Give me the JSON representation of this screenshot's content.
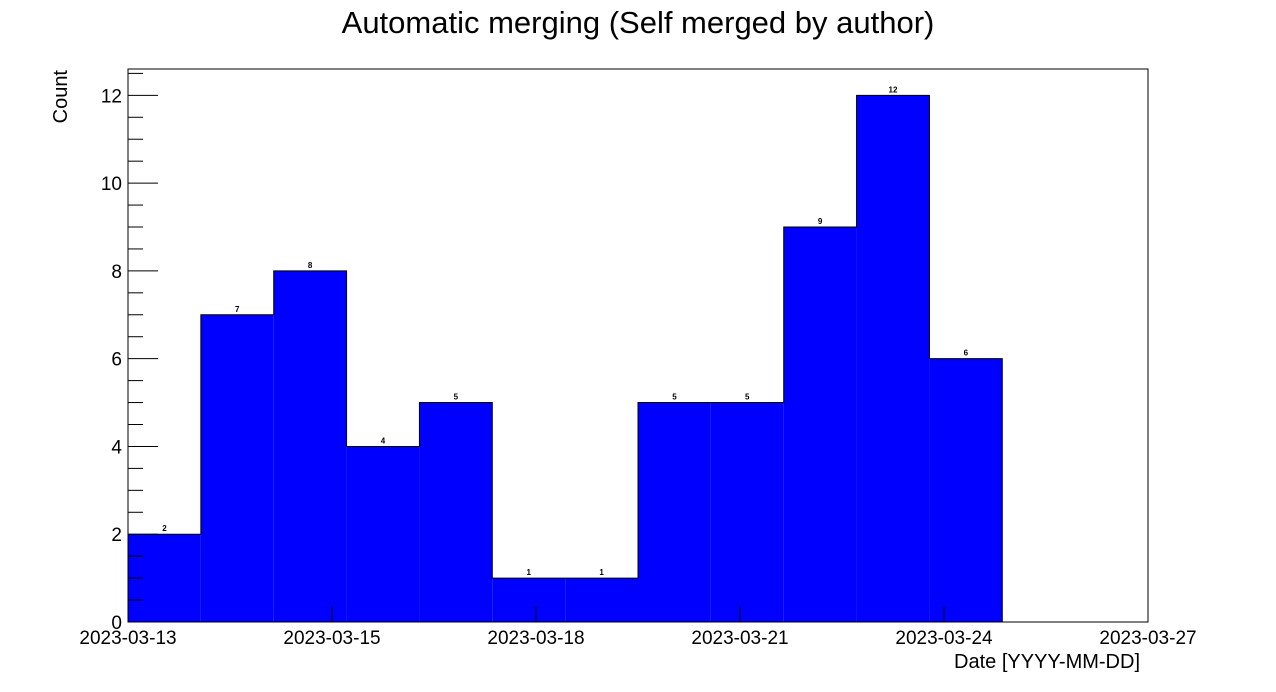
{
  "chart_data": {
    "type": "bar",
    "title": "Automatic merging (Self merged by author)",
    "xlabel": "Date [YYYY-MM-DD]",
    "ylabel": "Count",
    "x_tick_labels": [
      "2023-03-13",
      "2023-03-15",
      "2023-03-18",
      "2023-03-21",
      "2023-03-24",
      "2023-03-27"
    ],
    "y_ticks": [
      0,
      2,
      4,
      6,
      8,
      10,
      12
    ],
    "ylim": [
      0,
      12.6
    ],
    "bins": 14,
    "values": [
      2,
      7,
      8,
      4,
      5,
      1,
      1,
      5,
      5,
      9,
      12,
      6,
      0,
      0
    ],
    "bar_color": "#0000ff",
    "grid": false,
    "legend": "none"
  }
}
